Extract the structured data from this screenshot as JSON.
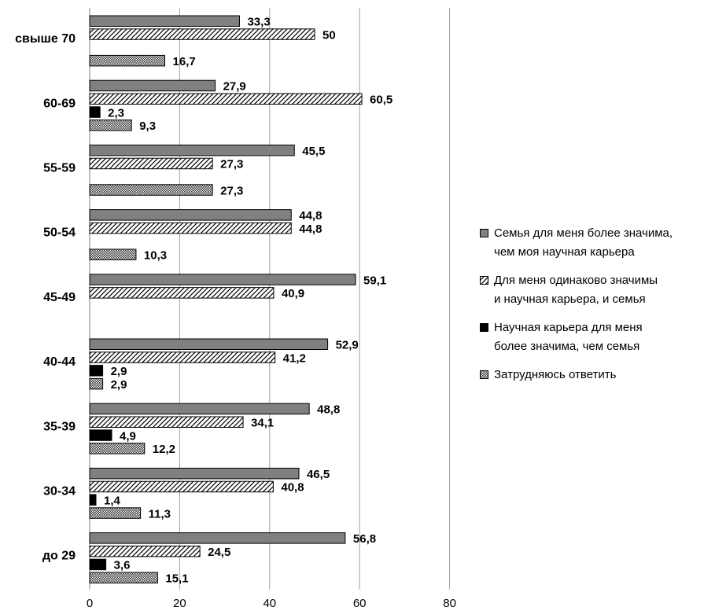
{
  "chart_data": {
    "type": "bar",
    "orientation": "horizontal",
    "categories": [
      "свыше 70",
      "60-69",
      "55-59",
      "50-54",
      "45-49",
      "40-44",
      "35-39",
      "30-34",
      "до 29"
    ],
    "series": [
      {
        "name": "Семья для меня более значима, чем моя научная карьера",
        "values": [
          33.3,
          27.9,
          45.5,
          44.8,
          59.1,
          52.9,
          48.8,
          46.5,
          56.8
        ],
        "labels": [
          "33,3",
          "27,9",
          "45,5",
          "44,8",
          "59,1",
          "52,9",
          "48,8",
          "46,5",
          "56,8"
        ]
      },
      {
        "name": "Для меня одинаково значимы и научная карьера, и семья",
        "values": [
          50,
          60.5,
          27.3,
          44.8,
          40.9,
          41.2,
          34.1,
          40.8,
          24.5
        ],
        "labels": [
          "50",
          "60,5",
          "27,3",
          "44,8",
          "40,9",
          "41,2",
          "34,1",
          "40,8",
          "24,5"
        ]
      },
      {
        "name": "Научная карьера для меня более значима, чем семья",
        "values": [
          null,
          2.3,
          null,
          null,
          null,
          2.9,
          4.9,
          1.4,
          3.6
        ],
        "labels": [
          null,
          "2,3",
          null,
          null,
          null,
          "2,9",
          "4,9",
          "1,4",
          "3,6"
        ]
      },
      {
        "name": "Затрудняюсь ответить",
        "values": [
          16.7,
          9.3,
          27.3,
          10.3,
          null,
          2.9,
          12.2,
          11.3,
          15.1
        ],
        "labels": [
          "16,7",
          "9,3",
          "27,3",
          "10,3",
          null,
          "2,9",
          "12,2",
          "11,3",
          "15,1"
        ]
      }
    ],
    "xlim": [
      0,
      80
    ],
    "x_ticks": [
      "0",
      "20",
      "40",
      "60",
      "80"
    ],
    "grid": "vertical",
    "legend_position": "right",
    "colors": [
      "#808080",
      "hatch-diagonal",
      "#000000",
      "crosshatch"
    ],
    "title": "",
    "xlabel": "",
    "ylabel": ""
  },
  "legend": {
    "items": [
      {
        "icon": "solid-gray",
        "lines": [
          "Семья для меня более значима,",
          "чем моя научная карьера"
        ]
      },
      {
        "icon": "diagonal-hatch",
        "lines": [
          "Для меня одинаково значимы",
          "и научная карьера, и семья"
        ]
      },
      {
        "icon": "solid-black",
        "lines": [
          "Научная карьера для меня",
          "более значима, чем семья"
        ]
      },
      {
        "icon": "crosshatch",
        "lines": [
          "Затрудняюсь ответить"
        ]
      }
    ]
  }
}
